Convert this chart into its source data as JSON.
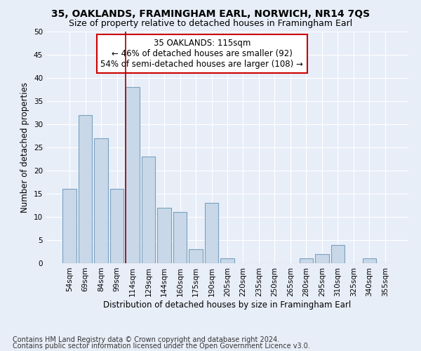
{
  "title": "35, OAKLANDS, FRAMINGHAM EARL, NORWICH, NR14 7QS",
  "subtitle": "Size of property relative to detached houses in Framingham Earl",
  "xlabel": "Distribution of detached houses by size in Framingham Earl",
  "ylabel": "Number of detached properties",
  "categories": [
    "54sqm",
    "69sqm",
    "84sqm",
    "99sqm",
    "114sqm",
    "129sqm",
    "144sqm",
    "160sqm",
    "175sqm",
    "190sqm",
    "205sqm",
    "220sqm",
    "235sqm",
    "250sqm",
    "265sqm",
    "280sqm",
    "295sqm",
    "310sqm",
    "325sqm",
    "340sqm",
    "355sqm"
  ],
  "values": [
    16,
    32,
    27,
    16,
    38,
    23,
    12,
    11,
    3,
    13,
    1,
    0,
    0,
    0,
    0,
    1,
    2,
    4,
    0,
    1,
    0
  ],
  "bar_color": "#c8d8e8",
  "bar_edge_color": "#7aa0c0",
  "vline_x": 3.575,
  "vline_color": "#990000",
  "annotation_line1": "35 OAKLANDS: 115sqm",
  "annotation_line2": "← 46% of detached houses are smaller (92)",
  "annotation_line3": "54% of semi-detached houses are larger (108) →",
  "annotation_box_color": "#ffffff",
  "annotation_box_edgecolor": "#cc0000",
  "ylim": [
    0,
    50
  ],
  "yticks": [
    0,
    5,
    10,
    15,
    20,
    25,
    30,
    35,
    40,
    45,
    50
  ],
  "background_color": "#e8eef8",
  "grid_color": "#ffffff",
  "footer_line1": "Contains HM Land Registry data © Crown copyright and database right 2024.",
  "footer_line2": "Contains public sector information licensed under the Open Government Licence v3.0.",
  "title_fontsize": 10,
  "subtitle_fontsize": 9,
  "axis_label_fontsize": 8.5,
  "tick_fontsize": 7.5,
  "annotation_fontsize": 8.5,
  "footer_fontsize": 7
}
